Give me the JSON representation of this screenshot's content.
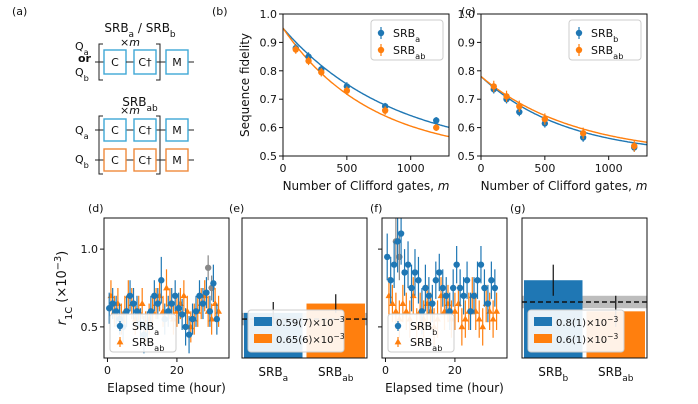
{
  "colors": {
    "blue": "#1f77b4",
    "orange": "#ff7f0e",
    "gray": "#888888",
    "qa_box": "#3fa7d6",
    "qb_box": "#f08a3c"
  },
  "panel_labels": [
    "(a)",
    "(b)",
    "(c)",
    "(d)",
    "(e)",
    "(f)",
    "(g)"
  ],
  "circuit": {
    "top_title": "SRBa / SRBb",
    "top_title_parts": [
      [
        "SRB",
        ""
      ],
      [
        "a",
        "sub"
      ],
      [
        " / SRB",
        ""
      ],
      [
        "b",
        "sub"
      ]
    ],
    "bottom_title_parts": [
      [
        "SRB",
        ""
      ],
      [
        "ab",
        "sub"
      ]
    ],
    "repeat": "×m",
    "q_a": "Q",
    "q_a_sub": "a",
    "q_b": "Q",
    "q_b_sub": "b",
    "or": "or",
    "gate_c": "C",
    "gate_cdag": "C†",
    "gate_m": "M"
  },
  "chart_data": [
    {
      "id": "b",
      "type": "scatter",
      "xlabel": "Number of Clifford gates, m",
      "ylabel": "Sequence fidelity",
      "xlim": [
        0,
        1300
      ],
      "ylim": [
        0.5,
        1.0
      ],
      "xticks": [
        0,
        500,
        1000
      ],
      "yticks": [
        0.5,
        0.6,
        0.7,
        0.8,
        0.9,
        1.0
      ],
      "legend": "top-right",
      "series": [
        {
          "name": "SRBa",
          "label_parts": [
            [
              "SRB",
              ""
            ],
            [
              "a",
              "sub"
            ]
          ],
          "color": "blue",
          "x": [
            100,
            200,
            300,
            500,
            800,
            1200
          ],
          "y": [
            0.88,
            0.85,
            0.805,
            0.745,
            0.675,
            0.625
          ],
          "err": [
            0.015,
            0.015,
            0.015,
            0.015,
            0.012,
            0.012
          ],
          "fit": {
            "A": 0.45,
            "p": 0.99885,
            "B": 0.5
          }
        },
        {
          "name": "SRBab",
          "label_parts": [
            [
              "SRB",
              ""
            ],
            [
              "ab",
              "sub"
            ]
          ],
          "color": "orange",
          "x": [
            100,
            200,
            300,
            500,
            800,
            1200
          ],
          "y": [
            0.875,
            0.835,
            0.795,
            0.73,
            0.66,
            0.6
          ],
          "err": [
            0.015,
            0.015,
            0.015,
            0.015,
            0.015,
            0.012
          ],
          "fit": {
            "A": 0.45,
            "p": 0.99855,
            "B": 0.5
          }
        }
      ]
    },
    {
      "id": "c",
      "type": "scatter",
      "xlabel": "Number of Clifford gates, m",
      "ylabel": "",
      "xlim": [
        0,
        1300
      ],
      "ylim": [
        0.5,
        1.0
      ],
      "xticks": [
        0,
        500,
        1000
      ],
      "yticks": [
        0.5,
        0.6,
        0.7,
        0.8,
        0.9,
        1.0
      ],
      "legend": "top-right",
      "series": [
        {
          "name": "SRBb",
          "label_parts": [
            [
              "SRB",
              ""
            ],
            [
              "b",
              "sub"
            ]
          ],
          "color": "blue",
          "x": [
            100,
            200,
            300,
            500,
            800,
            1200
          ],
          "y": [
            0.735,
            0.7,
            0.655,
            0.615,
            0.565,
            0.53
          ],
          "err": [
            0.015,
            0.015,
            0.015,
            0.015,
            0.015,
            0.015
          ],
          "fit": {
            "A": 0.28,
            "p": 0.9985,
            "B": 0.5
          }
        },
        {
          "name": "SRBab",
          "label_parts": [
            [
              "SRB",
              ""
            ],
            [
              "ab",
              "sub"
            ]
          ],
          "color": "orange",
          "x": [
            100,
            200,
            300,
            500,
            800,
            1200
          ],
          "y": [
            0.745,
            0.71,
            0.675,
            0.63,
            0.58,
            0.535
          ],
          "err": [
            0.02,
            0.02,
            0.02,
            0.02,
            0.02,
            0.02
          ],
          "fit": {
            "A": 0.28,
            "p": 0.99865,
            "B": 0.5
          }
        }
      ]
    },
    {
      "id": "d",
      "type": "scatter",
      "xlabel": "Elapsed time (hour)",
      "ylabel": "r1C (×10−3)",
      "ylabel_parts": [
        [
          "r",
          "it"
        ],
        [
          "1C",
          "sub"
        ],
        [
          " (×10",
          ""
        ],
        [
          "−3",
          "sup"
        ],
        [
          ")",
          ""
        ]
      ],
      "xlim": [
        -1,
        35
      ],
      "ylim": [
        0.3,
        1.2
      ],
      "xticks": [
        0,
        20
      ],
      "yticks": [
        0.5,
        1.0
      ],
      "legend": "bottom-left",
      "series": [
        {
          "name": "SRBa",
          "label_parts": [
            [
              "SRB",
              ""
            ],
            [
              "a",
              "sub"
            ]
          ],
          "color": "blue",
          "marker": "circle",
          "x": [
            0.5,
            1.5,
            2.5,
            3.5,
            4.5,
            5.5,
            6.5,
            7.5,
            8.5,
            9.5,
            10.5,
            11.5,
            12.5,
            13.5,
            14.5,
            15.5,
            16.5,
            17.5,
            18.5,
            19.5,
            20.5,
            21.5,
            22.5,
            23.5,
            24.5,
            25.5,
            26.5,
            27.5,
            28.5,
            29.5,
            30.5,
            31.5
          ],
          "y": [
            0.62,
            0.65,
            0.6,
            0.55,
            0.5,
            0.6,
            0.7,
            0.65,
            0.6,
            0.52,
            0.45,
            0.5,
            0.6,
            0.7,
            0.65,
            0.8,
            0.55,
            0.6,
            0.65,
            0.7,
            0.62,
            0.58,
            0.5,
            0.45,
            0.55,
            0.6,
            0.7,
            0.65,
            0.72,
            0.6,
            0.78,
            0.55
          ],
          "err": [
            0.1,
            0.1,
            0.1,
            0.1,
            0.1,
            0.1,
            0.1,
            0.1,
            0.1,
            0.1,
            0.12,
            0.1,
            0.1,
            0.1,
            0.1,
            0.15,
            0.1,
            0.1,
            0.1,
            0.1,
            0.1,
            0.1,
            0.12,
            0.12,
            0.1,
            0.1,
            0.1,
            0.1,
            0.1,
            0.1,
            0.12,
            0.1
          ]
        },
        {
          "name": "SRBab",
          "label_parts": [
            [
              "SRB",
              ""
            ],
            [
              "ab",
              "sub"
            ]
          ],
          "color": "orange",
          "marker": "triangle",
          "x": [
            1,
            2,
            3,
            4,
            5,
            6,
            7,
            8,
            9,
            10,
            11,
            12,
            13,
            14,
            15,
            16,
            17,
            18,
            19,
            20,
            21,
            22,
            23,
            24,
            25,
            26,
            27,
            28,
            29,
            30,
            31,
            32
          ],
          "y": [
            0.7,
            0.6,
            0.65,
            0.55,
            0.6,
            0.7,
            0.65,
            0.55,
            0.6,
            0.65,
            0.5,
            0.55,
            0.6,
            0.65,
            0.7,
            0.6,
            0.75,
            0.65,
            0.55,
            0.6,
            0.65,
            0.7,
            0.6,
            0.5,
            0.55,
            0.6,
            0.65,
            0.7,
            0.6,
            0.55,
            0.65,
            0.6
          ],
          "err": [
            0.1,
            0.1,
            0.1,
            0.1,
            0.1,
            0.1,
            0.1,
            0.1,
            0.1,
            0.1,
            0.1,
            0.1,
            0.1,
            0.1,
            0.1,
            0.1,
            0.12,
            0.1,
            0.1,
            0.1,
            0.1,
            0.1,
            0.1,
            0.1,
            0.1,
            0.1,
            0.1,
            0.1,
            0.1,
            0.1,
            0.1,
            0.1
          ]
        },
        {
          "name": "",
          "color": "gray",
          "marker": "circle",
          "x": [
            29,
            30
          ],
          "y": [
            0.88,
            0.75
          ],
          "err": [
            0.08,
            0.08
          ]
        }
      ]
    },
    {
      "id": "e",
      "type": "bar",
      "categories": [
        "SRBa",
        "SRBab"
      ],
      "category_parts": [
        [
          [
            "SRB",
            ""
          ],
          [
            "a",
            "sub"
          ]
        ],
        [
          [
            "SRB",
            ""
          ],
          [
            "ab",
            "sub"
          ]
        ]
      ],
      "values": [
        0.59,
        0.65
      ],
      "errors": [
        0.07,
        0.06
      ],
      "colors": [
        "blue",
        "orange"
      ],
      "ylim": [
        0.3,
        1.2
      ],
      "reference": {
        "value": 0.55,
        "band": [
          0.51,
          0.59
        ]
      },
      "legend": "bottom-left",
      "legend_entries": [
        {
          "color": "blue",
          "parts": [
            [
              "0.59(7)×10",
              ""
            ],
            [
              "−3",
              "sup"
            ]
          ]
        },
        {
          "color": "orange",
          "parts": [
            [
              "0.65(6)×10",
              ""
            ],
            [
              "−3",
              "sup"
            ]
          ]
        }
      ]
    },
    {
      "id": "f",
      "type": "scatter",
      "xlabel": "Elapsed time (hour)",
      "ylabel": "",
      "xlim": [
        -1,
        35
      ],
      "ylim": [
        0.3,
        1.2
      ],
      "xticks": [
        0,
        20
      ],
      "yticks": [
        0.5,
        1.0
      ],
      "legend": "bottom-left",
      "series": [
        {
          "name": "SRBb",
          "label_parts": [
            [
              "SRB",
              ""
            ],
            [
              "b",
              "sub"
            ]
          ],
          "color": "blue",
          "marker": "circle",
          "x": [
            0.5,
            1.5,
            2.5,
            3.5,
            4.5,
            5.5,
            6.5,
            7.5,
            8.5,
            9.5,
            10.5,
            11.5,
            12.5,
            13.5,
            14.5,
            15.5,
            16.5,
            17.5,
            18.5,
            19.5,
            20.5,
            21.5,
            22.5,
            23.5,
            24.5,
            25.5,
            26.5,
            27.5,
            28.5,
            29.5,
            30.5,
            31.5
          ],
          "y": [
            0.95,
            0.8,
            0.9,
            1.05,
            1.1,
            0.85,
            0.9,
            0.75,
            0.85,
            0.8,
            0.6,
            0.75,
            0.7,
            0.65,
            0.8,
            0.85,
            0.75,
            0.7,
            0.6,
            0.75,
            0.9,
            0.75,
            0.7,
            0.8,
            0.6,
            0.7,
            0.8,
            0.9,
            0.75,
            0.65,
            0.8,
            0.75
          ],
          "err": [
            0.15,
            0.15,
            0.15,
            0.2,
            0.2,
            0.15,
            0.15,
            0.15,
            0.15,
            0.15,
            0.15,
            0.15,
            0.12,
            0.12,
            0.12,
            0.12,
            0.12,
            0.12,
            0.12,
            0.12,
            0.12,
            0.12,
            0.12,
            0.12,
            0.12,
            0.12,
            0.12,
            0.12,
            0.12,
            0.12,
            0.12,
            0.12
          ]
        },
        {
          "name": "SRBab",
          "label_parts": [
            [
              "SRB",
              ""
            ],
            [
              "ab",
              "sub"
            ]
          ],
          "color": "orange",
          "marker": "triangle",
          "x": [
            1,
            2,
            3,
            4,
            5,
            6,
            7,
            8,
            9,
            10,
            11,
            12,
            13,
            14,
            15,
            16,
            17,
            18,
            19,
            20,
            21,
            22,
            23,
            24,
            25,
            26,
            27,
            28,
            29,
            30,
            31,
            32
          ],
          "y": [
            0.7,
            0.65,
            0.6,
            0.55,
            0.65,
            0.6,
            0.55,
            0.7,
            0.5,
            0.6,
            0.55,
            0.65,
            0.6,
            0.5,
            0.55,
            0.7,
            0.6,
            0.65,
            0.55,
            0.6,
            0.65,
            0.5,
            0.55,
            0.6,
            0.7,
            0.6,
            0.55,
            0.5,
            0.65,
            0.6,
            0.55,
            0.6
          ],
          "err": [
            0.12,
            0.12,
            0.12,
            0.12,
            0.12,
            0.12,
            0.12,
            0.12,
            0.12,
            0.12,
            0.12,
            0.12,
            0.12,
            0.12,
            0.12,
            0.12,
            0.12,
            0.12,
            0.12,
            0.12,
            0.12,
            0.12,
            0.12,
            0.12,
            0.12,
            0.12,
            0.12,
            0.12,
            0.12,
            0.12,
            0.12,
            0.12
          ]
        },
        {
          "name": "",
          "color": "gray",
          "marker": "circle",
          "x": [
            3,
            4
          ],
          "y": [
            1.05,
            0.95
          ],
          "err": [
            0.15,
            0.15
          ]
        }
      ]
    },
    {
      "id": "g",
      "type": "bar",
      "categories": [
        "SRBb",
        "SRBab"
      ],
      "category_parts": [
        [
          [
            "SRB",
            ""
          ],
          [
            "b",
            "sub"
          ]
        ],
        [
          [
            "SRB",
            ""
          ],
          [
            "ab",
            "sub"
          ]
        ]
      ],
      "values": [
        0.8,
        0.6
      ],
      "errors": [
        0.1,
        0.1
      ],
      "colors": [
        "blue",
        "orange"
      ],
      "ylim": [
        0.3,
        1.2
      ],
      "reference": {
        "value": 0.66,
        "band": [
          0.62,
          0.7
        ]
      },
      "legend": "bottom-left",
      "legend_entries": [
        {
          "color": "blue",
          "parts": [
            [
              "0.8(1)×10",
              ""
            ],
            [
              "−3",
              "sup"
            ]
          ]
        },
        {
          "color": "orange",
          "parts": [
            [
              "0.6(1)×10",
              ""
            ],
            [
              "−3",
              "sup"
            ]
          ]
        }
      ]
    }
  ]
}
